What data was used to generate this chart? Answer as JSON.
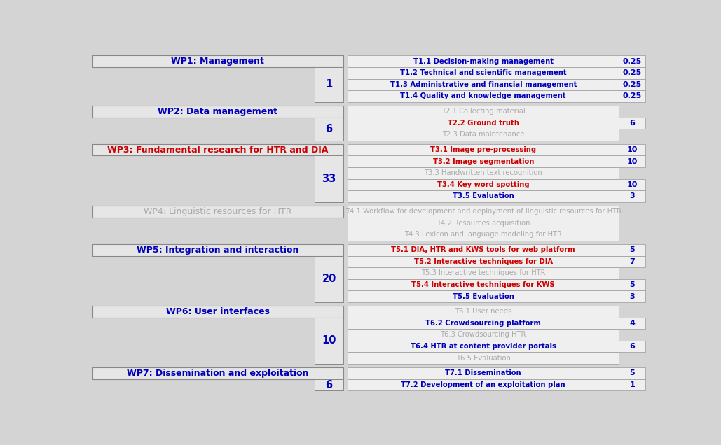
{
  "bg_color": "#d4d4d4",
  "wp_box_bg": "#e6e6e6",
  "wp_box_border": "#888888",
  "task_box_bg": "#efefef",
  "task_box_border": "#999999",
  "active_text_color": "#0000bb",
  "inactive_text_color": "#aaaaaa",
  "red_text_color": "#cc0000",
  "number_color": "#0000bb",
  "workpackages": [
    {
      "name": "WP1: Management",
      "name_color": "#0000bb",
      "name_bold": true,
      "number": "1",
      "tasks": [
        {
          "name": "T1.1 Decision-making management",
          "active": true,
          "highlight": false,
          "value": "0.25"
        },
        {
          "name": "T1.2 Technical and scientific management",
          "active": true,
          "highlight": false,
          "value": "0.25"
        },
        {
          "name": "T1.3 Administrative and financial management",
          "active": true,
          "highlight": false,
          "value": "0.25"
        },
        {
          "name": "T1.4 Quality and knowledge management",
          "active": true,
          "highlight": false,
          "value": "0.25"
        }
      ]
    },
    {
      "name": "WP2: Data management",
      "name_color": "#0000bb",
      "name_bold": true,
      "number": "6",
      "tasks": [
        {
          "name": "T2.1 Collecting material",
          "active": false,
          "highlight": false,
          "value": ""
        },
        {
          "name": "T2.2 Ground truth",
          "active": true,
          "highlight": true,
          "value": "6"
        },
        {
          "name": "T2.3 Data maintenance",
          "active": false,
          "highlight": false,
          "value": ""
        }
      ]
    },
    {
      "name": "WP3: Fundamental research for HTR and DIA",
      "name_color": "#cc0000",
      "name_bold": true,
      "number": "33",
      "tasks": [
        {
          "name": "T3.1 Image pre-processing",
          "active": true,
          "highlight": true,
          "value": "10"
        },
        {
          "name": "T3.2 Image segmentation",
          "active": true,
          "highlight": true,
          "value": "10"
        },
        {
          "name": "T3.3 Handwritten text recognition",
          "active": false,
          "highlight": false,
          "value": ""
        },
        {
          "name": "T3.4 Key word spotting",
          "active": true,
          "highlight": true,
          "value": "10"
        },
        {
          "name": "T3.5 Evaluation",
          "active": true,
          "highlight": false,
          "value": "3"
        }
      ]
    },
    {
      "name": "WP4: Linguistic resources for HTR",
      "name_color": "#aaaaaa",
      "name_bold": false,
      "number": "",
      "tasks": [
        {
          "name": "T4.1 Workflow for development and deployment of linguistic resources for HTR",
          "active": false,
          "highlight": false,
          "value": ""
        },
        {
          "name": "T4.2 Resources acquisition",
          "active": false,
          "highlight": false,
          "value": ""
        },
        {
          "name": "T4.3 Lexicon and language modeling for HTR",
          "active": false,
          "highlight": false,
          "value": ""
        }
      ]
    },
    {
      "name": "WP5: Integration and interaction",
      "name_color": "#0000bb",
      "name_bold": true,
      "number": "20",
      "tasks": [
        {
          "name": "T5.1 DIA, HTR and KWS tools for web platform",
          "active": true,
          "highlight": true,
          "value": "5"
        },
        {
          "name": "T5.2 Interactive techniques for DIA",
          "active": true,
          "highlight": true,
          "value": "7"
        },
        {
          "name": "T5.3 Interactive techniques for HTR",
          "active": false,
          "highlight": false,
          "value": ""
        },
        {
          "name": "T5.4 Interactive techniques for KWS",
          "active": true,
          "highlight": true,
          "value": "5"
        },
        {
          "name": "T5.5 Evaluation",
          "active": true,
          "highlight": false,
          "value": "3"
        }
      ]
    },
    {
      "name": "WP6: User interfaces",
      "name_color": "#0000bb",
      "name_bold": true,
      "number": "10",
      "tasks": [
        {
          "name": "T6.1 User needs",
          "active": false,
          "highlight": false,
          "value": ""
        },
        {
          "name": "T6.2 Crowdsourcing platform",
          "active": true,
          "highlight": false,
          "value": "4"
        },
        {
          "name": "T6.3 Crowdsourcing HTR",
          "active": false,
          "highlight": false,
          "value": ""
        },
        {
          "name": "T6.4 HTR at content provider portals",
          "active": true,
          "highlight": false,
          "value": "6"
        },
        {
          "name": "T6.5 Evaluation",
          "active": false,
          "highlight": false,
          "value": ""
        }
      ]
    },
    {
      "name": "WP7: Dissemination and exploitation",
      "name_color": "#0000bb",
      "name_bold": true,
      "number": "6",
      "tasks": [
        {
          "name": "T7.1 Dissemination",
          "active": true,
          "highlight": false,
          "value": "5"
        },
        {
          "name": "T7.2 Development of an exploitation plan",
          "active": true,
          "highlight": false,
          "value": "1"
        }
      ]
    }
  ]
}
